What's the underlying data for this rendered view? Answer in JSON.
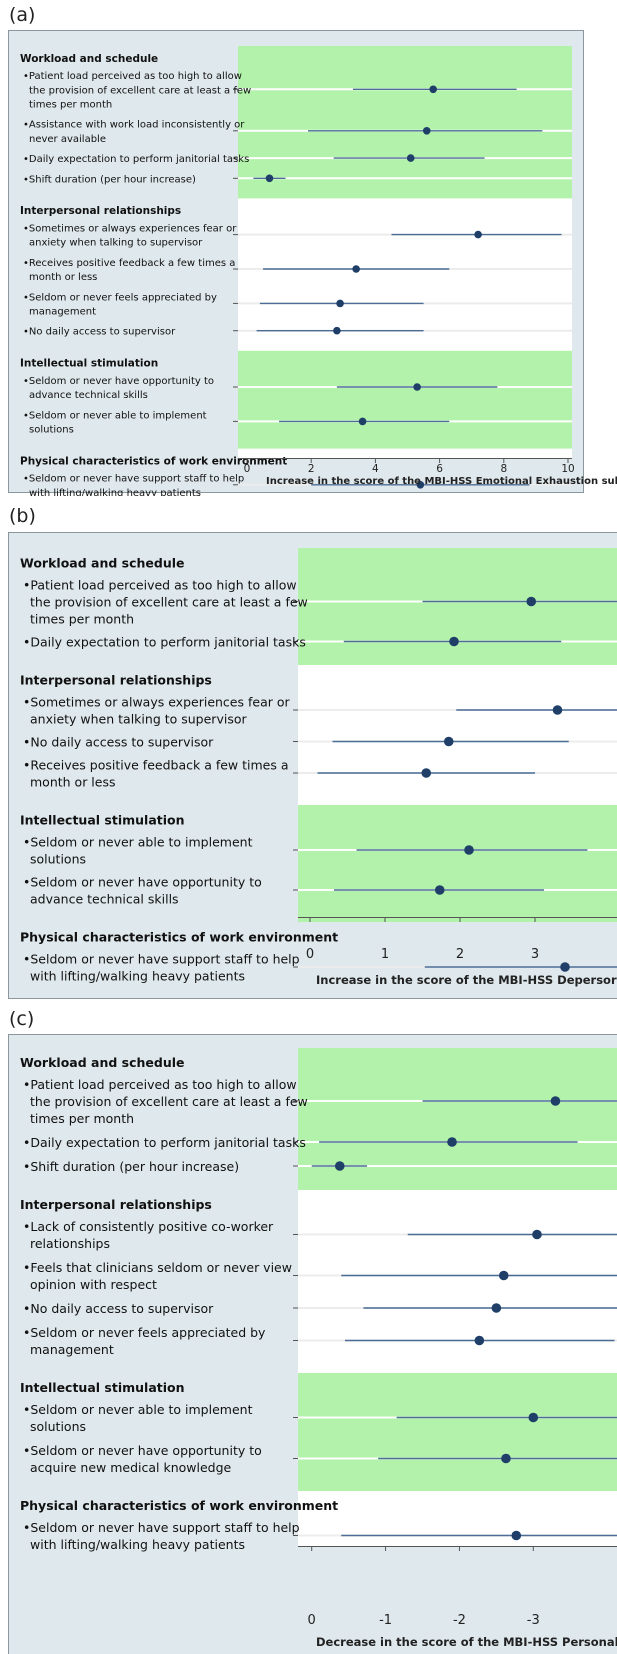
{
  "chart_data": [
    {
      "type": "forest",
      "panel_label": "(a)",
      "xlabel": "Increase in the score of the MBI-HSS Emotional Exhaustion subscale",
      "xlim": [
        0,
        10
      ],
      "xticks": [
        "0",
        "2",
        "4",
        "6",
        "8",
        "10"
      ],
      "groups": [
        {
          "heading": "Workload and schedule",
          "shaded": true,
          "items": [
            {
              "label": [
                "Patient load perceived as too high to allow",
                "the provision of excellent care at least a few",
                "times per month"
              ],
              "estimate": 5.8,
              "ci": [
                3.3,
                8.4
              ]
            },
            {
              "label": [
                "Assistance with work load inconsistently or",
                "never available"
              ],
              "estimate": 5.6,
              "ci": [
                1.9,
                9.2
              ]
            },
            {
              "label": [
                "Daily expectation to perform janitorial tasks"
              ],
              "estimate": 5.1,
              "ci": [
                2.7,
                7.4
              ]
            },
            {
              "label": [
                "Shift duration (per hour increase)"
              ],
              "estimate": 0.7,
              "ci": [
                0.2,
                1.2
              ]
            }
          ]
        },
        {
          "heading": "Interpersonal relationships",
          "shaded": false,
          "items": [
            {
              "label": [
                "Sometimes or always experiences fear or",
                "anxiety when talking to supervisor"
              ],
              "estimate": 7.2,
              "ci": [
                4.5,
                9.8
              ]
            },
            {
              "label": [
                "Receives positive feedback a few times a",
                "month or less"
              ],
              "estimate": 3.4,
              "ci": [
                0.5,
                6.3
              ]
            },
            {
              "label": [
                "Seldom or never feels appreciated by",
                "management"
              ],
              "estimate": 2.9,
              "ci": [
                0.4,
                5.5
              ]
            },
            {
              "label": [
                "No daily access to supervisor"
              ],
              "estimate": 2.8,
              "ci": [
                0.3,
                5.5
              ]
            }
          ]
        },
        {
          "heading": "Intellectual stimulation",
          "shaded": true,
          "items": [
            {
              "label": [
                "Seldom or never have opportunity to",
                "advance technical skills"
              ],
              "estimate": 5.3,
              "ci": [
                2.8,
                7.8
              ]
            },
            {
              "label": [
                "Seldom or never able to implement",
                "solutions"
              ],
              "estimate": 3.6,
              "ci": [
                1.0,
                6.3
              ]
            }
          ]
        },
        {
          "heading": "Physical characteristics of work environment",
          "shaded": false,
          "items": [
            {
              "label": [
                "Seldom or never have support staff to help",
                "with lifting/walking heavy patients"
              ],
              "estimate": 5.4,
              "ci": [
                2.0,
                8.8
              ]
            }
          ]
        }
      ]
    },
    {
      "type": "forest",
      "panel_label": "(b)",
      "xlabel": "Increase in the score of the MBI-HSS Depersor",
      "xlim": [
        0,
        3.8
      ],
      "xticks": [
        "0",
        "1",
        "2",
        "3"
      ],
      "groups": [
        {
          "heading": "Workload and schedule",
          "shaded": true,
          "items": [
            {
              "label": [
                "Patient load perceived as too high to allow",
                "the provision of excellent care at least a few",
                "times per month"
              ],
              "estimate": 2.95,
              "ci": [
                1.5,
                4.5
              ]
            },
            {
              "label": [
                "Daily expectation to perform janitorial tasks"
              ],
              "estimate": 1.92,
              "ci": [
                0.45,
                3.35
              ]
            }
          ]
        },
        {
          "heading": "Interpersonal relationships",
          "shaded": false,
          "items": [
            {
              "label": [
                "Sometimes or always experiences fear or",
                "anxiety when talking to supervisor"
              ],
              "estimate": 3.3,
              "ci": [
                1.95,
                4.7
              ]
            },
            {
              "label": [
                "No daily access to supervisor"
              ],
              "estimate": 1.85,
              "ci": [
                0.3,
                3.45
              ]
            },
            {
              "label": [
                "Receives positive feedback a few times a",
                "month or less"
              ],
              "estimate": 1.55,
              "ci": [
                0.1,
                3.0
              ]
            }
          ]
        },
        {
          "heading": "Intellectual stimulation",
          "shaded": true,
          "items": [
            {
              "label": [
                "Seldom or never able to implement",
                "solutions"
              ],
              "estimate": 2.12,
              "ci": [
                0.62,
                3.7
              ]
            },
            {
              "label": [
                "Seldom or never have opportunity to",
                "advance technical skills"
              ],
              "estimate": 1.73,
              "ci": [
                0.32,
                3.12
              ]
            }
          ]
        },
        {
          "heading": "Physical characteristics of work environment",
          "shaded": false,
          "items": [
            {
              "label": [
                "Seldom or never have support staff to help",
                "with lifting/walking heavy patients"
              ],
              "estimate": 3.4,
              "ci": [
                1.53,
                5.2
              ]
            }
          ]
        }
      ]
    },
    {
      "type": "forest",
      "panel_label": "(c)",
      "xlabel": "Decrease in the score of the MBI-HSS Personal Ac",
      "xlim": [
        0.05,
        -3.7
      ],
      "xticks": [
        "0",
        "-1",
        "-2",
        "-3"
      ],
      "groups": [
        {
          "heading": "Workload and schedule",
          "shaded": true,
          "items": [
            {
              "label": [
                "Patient load perceived as too high to allow",
                "the provision of excellent care at least a few",
                "times per month"
              ],
              "estimate": -3.3,
              "ci": [
                -1.5,
                -5.0
              ]
            },
            {
              "label": [
                "Daily expectation to perform janitorial tasks"
              ],
              "estimate": -1.9,
              "ci": [
                -0.1,
                -3.6
              ]
            },
            {
              "label": [
                "Shift duration (per hour increase)"
              ],
              "estimate": -0.38,
              "ci": [
                0.0,
                -0.75
              ]
            }
          ]
        },
        {
          "heading": "Interpersonal relationships",
          "shaded": false,
          "items": [
            {
              "label": [
                "Lack of consistently positive co-worker",
                "relationships"
              ],
              "estimate": -3.05,
              "ci": [
                -1.3,
                -4.8
              ]
            },
            {
              "label": [
                "Feels that clinicians seldom or never view",
                "opinion with respect"
              ],
              "estimate": -2.6,
              "ci": [
                -0.4,
                -4.8
              ]
            },
            {
              "label": [
                "No daily access to supervisor"
              ],
              "estimate": -2.5,
              "ci": [
                -0.7,
                -4.3
              ]
            },
            {
              "label": [
                "Seldom or never feels appreciated by",
                "management"
              ],
              "estimate": -2.27,
              "ci": [
                -0.45,
                -4.1
              ]
            }
          ]
        },
        {
          "heading": "Intellectual stimulation",
          "shaded": true,
          "items": [
            {
              "label": [
                "Seldom or never able to implement",
                "solutions"
              ],
              "estimate": -3.0,
              "ci": [
                -1.15,
                -4.9
              ]
            },
            {
              "label": [
                "Seldom or never have opportunity to",
                "acquire new medical knowledge"
              ],
              "estimate": -2.63,
              "ci": [
                -0.9,
                -4.4
              ]
            }
          ]
        },
        {
          "heading": "Physical characteristics of work environment",
          "shaded": false,
          "items": [
            {
              "label": [
                "Seldom or never have support staff to help",
                "with lifting/walking heavy patients"
              ],
              "estimate": -2.77,
              "ci": [
                -0.4,
                -5.1
              ]
            }
          ]
        }
      ]
    }
  ]
}
